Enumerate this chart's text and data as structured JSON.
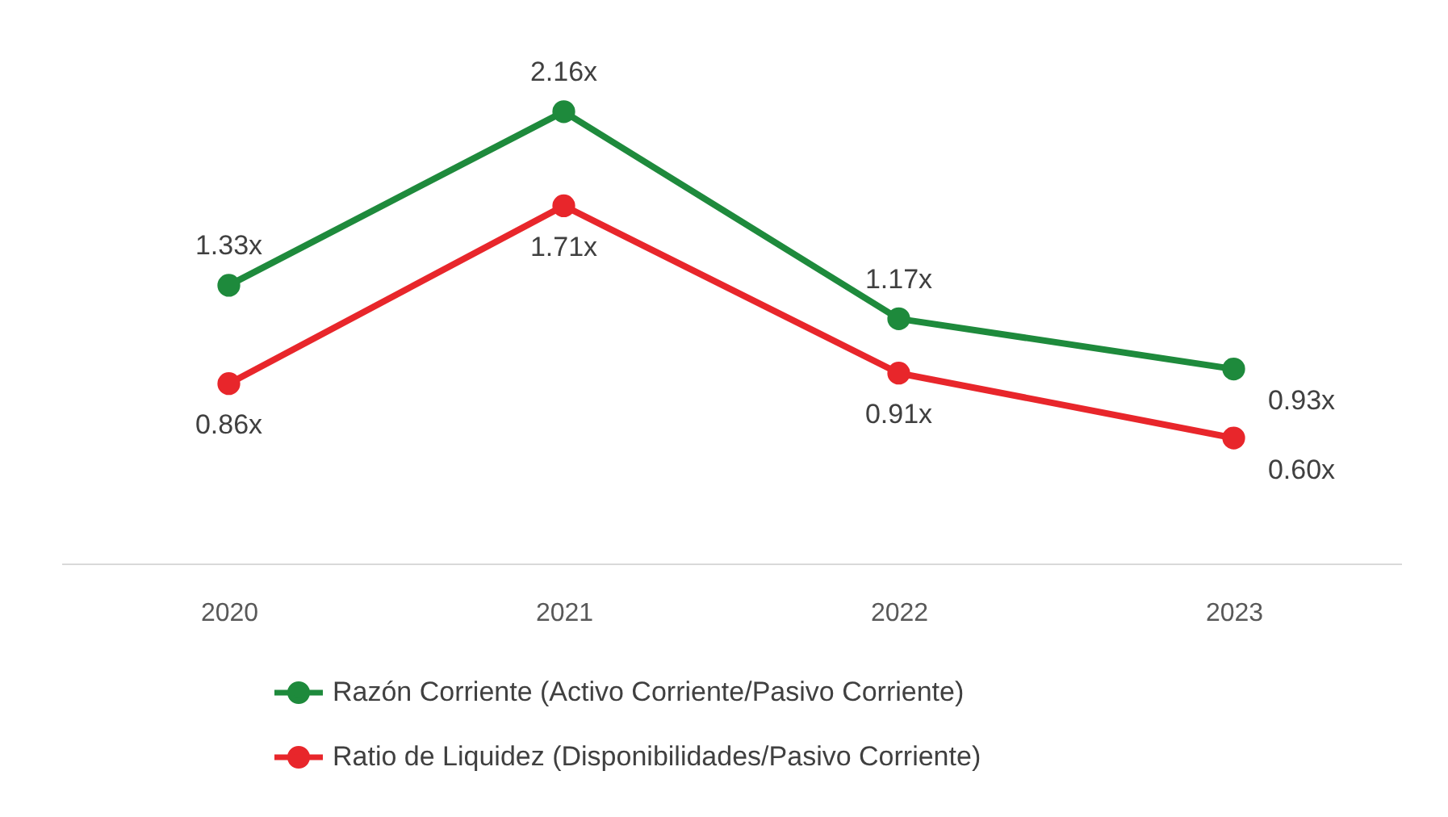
{
  "chart_data": {
    "type": "line",
    "categories": [
      "2020",
      "2021",
      "2022",
      "2023"
    ],
    "series": [
      {
        "name": "Razón Corriente (Activo Corriente/Pasivo Corriente)",
        "color": "#1e8a3c",
        "values": [
          1.33,
          2.16,
          1.17,
          0.93
        ],
        "value_labels": [
          "1.33x",
          "2.16x",
          "1.17x",
          "0.93x"
        ]
      },
      {
        "name": "Ratio de Liquidez (Disponibilidades/Pasivo Corriente)",
        "color": "#e8262b",
        "values": [
          0.86,
          1.71,
          0.91,
          0.6
        ],
        "value_labels": [
          "0.86x",
          "1.71x",
          "0.91x",
          "0.60x"
        ]
      }
    ],
    "marker": "circle",
    "line_style": "solid",
    "grid": false,
    "legend": "bottom"
  }
}
